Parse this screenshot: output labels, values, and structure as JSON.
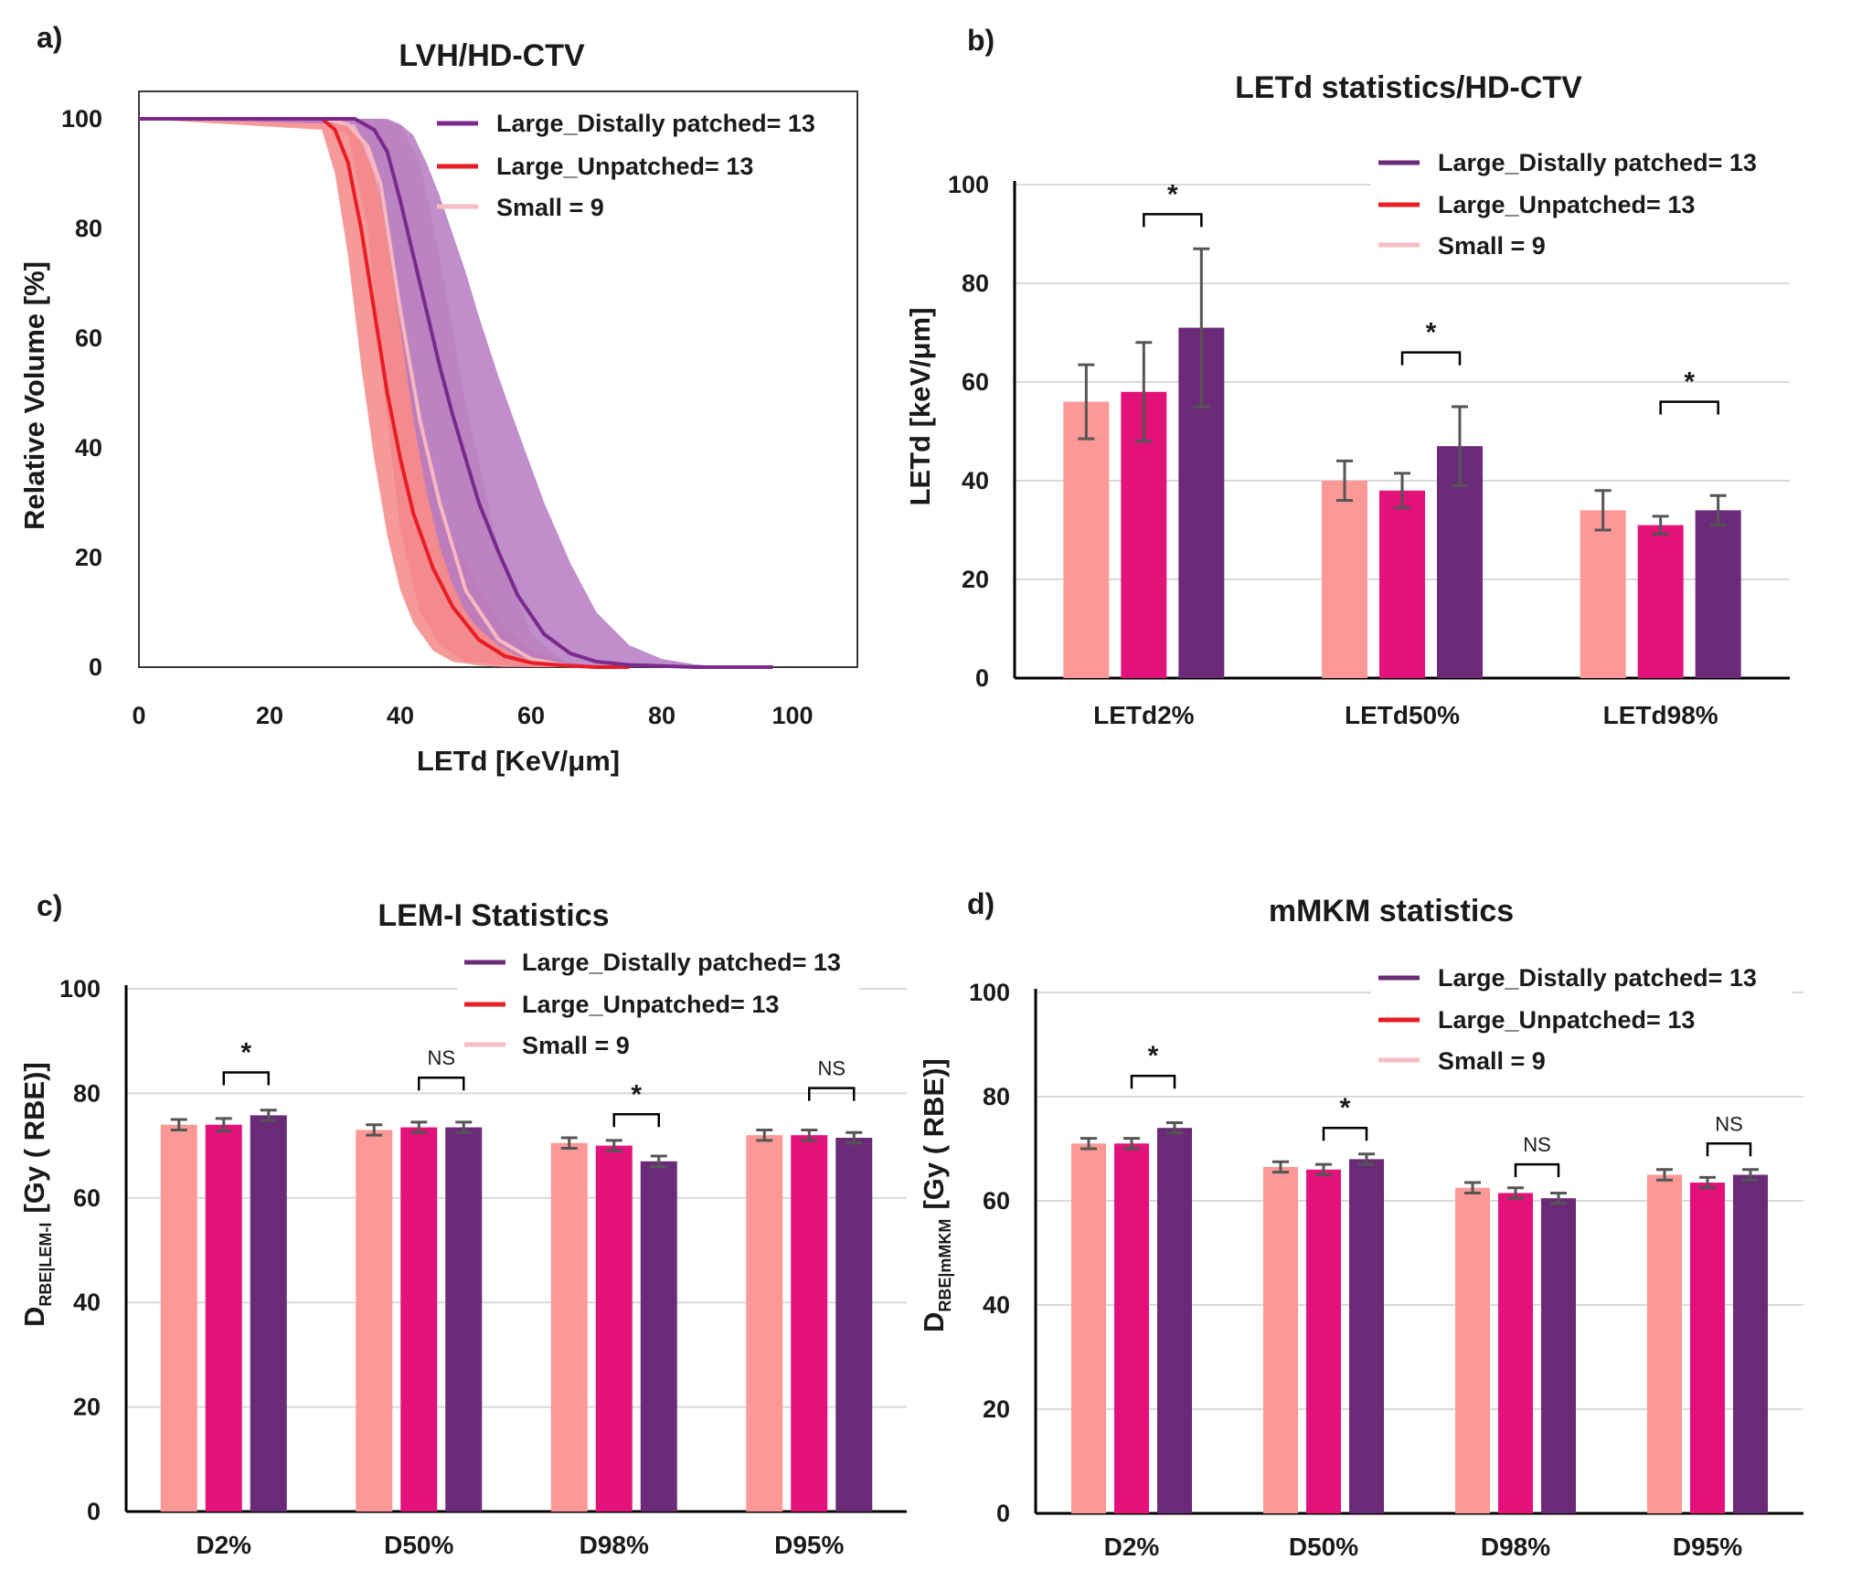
{
  "colors": {
    "small": "#fc9896",
    "unpatched": "#e2127a",
    "patched": "#6b2a78",
    "lvh_patched": "#7a2a8c",
    "lvh_patched_band": "#b47ac2",
    "lvh_unpatched": "#e81d25",
    "lvh_unpatched_band": "#f48080",
    "lvh_small": "#f7b8c0",
    "lvh_small_band": "#e8a4bf",
    "legend_small": "#f7bcc4",
    "grid": "#d9d9d9",
    "error": "#555555"
  },
  "chart_data": [
    {
      "id": "a",
      "panel_label": "a)",
      "type": "line",
      "title": "LVH/HD-CTV",
      "xlabel": "LETd [KeV/μm]",
      "ylabel": "Relative Volume [%]",
      "xlim": [
        0,
        110
      ],
      "ylim": [
        0,
        100
      ],
      "xticks": [
        "0",
        "20",
        "40",
        "60",
        "80",
        "100"
      ],
      "yticks": [
        "0",
        "20",
        "40",
        "60",
        "80",
        "100"
      ],
      "legend": [
        "Large_Distally patched= 13",
        "Large_Unpatched= 13",
        "Small = 9"
      ],
      "series": [
        {
          "name": "Small = 9",
          "color_key": "lvh_small",
          "band_key": "lvh_small_band",
          "band_opacity": 0.85,
          "x": [
            0,
            28,
            32,
            35,
            37,
            40,
            43,
            46,
            50,
            55,
            60,
            65,
            70
          ],
          "y": [
            100,
            100,
            99,
            95,
            88,
            65,
            45,
            30,
            14,
            5,
            1.5,
            0.3,
            0
          ],
          "upper": [
            100,
            100,
            100,
            100,
            100,
            99,
            92,
            75,
            48,
            22,
            6,
            1,
            0
          ],
          "lower": [
            100,
            100,
            97,
            80,
            55,
            25,
            10,
            4,
            1,
            0.5,
            0,
            0,
            0
          ]
        },
        {
          "name": "Large_Unpatched= 13",
          "color_key": "lvh_unpatched",
          "band_key": "lvh_unpatched_band",
          "band_opacity": 0.8,
          "x": [
            0,
            28,
            30,
            32,
            34,
            36,
            38,
            40,
            42,
            45,
            48,
            52,
            56,
            60,
            65,
            70,
            75
          ],
          "y": [
            100,
            100,
            98,
            92,
            80,
            65,
            50,
            38,
            28,
            18,
            11,
            5,
            2,
            0.8,
            0.3,
            0,
            0
          ],
          "upper": [
            100,
            100,
            100,
            99,
            96,
            90,
            80,
            65,
            50,
            34,
            24,
            14,
            7,
            3,
            1,
            0.3,
            0
          ],
          "lower": [
            100,
            98,
            90,
            75,
            55,
            38,
            24,
            14,
            8,
            3,
            1,
            0.3,
            0,
            0,
            0,
            0,
            0
          ]
        },
        {
          "name": "Large_Distally patched= 13",
          "color_key": "lvh_patched",
          "band_key": "lvh_patched_band",
          "band_opacity": 0.85,
          "x": [
            0,
            33,
            36,
            38,
            40,
            42,
            44,
            46,
            48,
            50,
            52,
            55,
            58,
            62,
            66,
            70,
            75,
            80,
            85,
            90,
            97
          ],
          "y": [
            100,
            100,
            98,
            94,
            85,
            75,
            65,
            55,
            46,
            38,
            30,
            21,
            13,
            6,
            2.5,
            1,
            0.4,
            0.2,
            0,
            0,
            0
          ],
          "upper": [
            100,
            100,
            100,
            100,
            99,
            97,
            92,
            86,
            79,
            72,
            64,
            53,
            43,
            30,
            19,
            10,
            4,
            1.5,
            0.5,
            0,
            0
          ],
          "lower": [
            100,
            99,
            92,
            78,
            62,
            45,
            32,
            22,
            15,
            10,
            7,
            4,
            2,
            0.7,
            0.2,
            0,
            0,
            0,
            0,
            0,
            0
          ]
        }
      ]
    },
    {
      "id": "b",
      "panel_label": "b)",
      "type": "bar",
      "title": "LETd statistics/HD-CTV",
      "ylabel": "LETd [keV/μm]",
      "ylim": [
        0,
        100
      ],
      "yticks": [
        "0",
        "20",
        "40",
        "60",
        "80",
        "100"
      ],
      "categories": [
        "LETd2%",
        "LETd50%",
        "LETd98%"
      ],
      "legend": [
        "Large_Distally patched= 13",
        "Large_Unpatched= 13",
        "Small = 9"
      ],
      "series": [
        {
          "name": "Small = 9",
          "color_key": "small",
          "values": [
            56,
            40,
            34
          ],
          "errors": [
            7.5,
            4,
            4
          ]
        },
        {
          "name": "Large_Unpatched= 13",
          "color_key": "unpatched",
          "values": [
            58,
            38,
            31
          ],
          "errors": [
            10,
            3.5,
            1.8
          ]
        },
        {
          "name": "Large_Distally patched= 13",
          "color_key": "patched",
          "values": [
            71,
            47,
            34
          ],
          "errors": [
            16,
            8,
            3
          ]
        }
      ],
      "significance": [
        {
          "category": 0,
          "label": "*",
          "bracket_y": 94
        },
        {
          "category": 1,
          "label": "*",
          "bracket_y": 66
        },
        {
          "category": 2,
          "label": "*",
          "bracket_y": 56
        }
      ]
    },
    {
      "id": "c",
      "panel_label": "c)",
      "type": "bar",
      "title": "LEM-I Statistics",
      "ylabel": "D",
      "ylabel_sub": "RBE|LEM-I",
      "ylabel_suffix": "[Gy ( RBE)]",
      "ylim": [
        0,
        100
      ],
      "yticks": [
        "0",
        "20",
        "40",
        "60",
        "80",
        "100"
      ],
      "categories": [
        "D2%",
        "D50%",
        "D98%",
        "D95%"
      ],
      "legend": [
        "Large_Distally patched= 13",
        "Large_Unpatched= 13",
        "Small = 9"
      ],
      "series": [
        {
          "name": "Small = 9",
          "color_key": "small",
          "values": [
            74,
            73,
            70.5,
            72
          ],
          "errors": [
            1,
            1,
            1,
            1
          ]
        },
        {
          "name": "Large_Unpatched= 13",
          "color_key": "unpatched",
          "values": [
            74,
            73.5,
            70,
            72
          ],
          "errors": [
            1.2,
            1,
            1,
            1
          ]
        },
        {
          "name": "Large_Distally patched= 13",
          "color_key": "patched",
          "values": [
            75.8,
            73.5,
            67,
            71.5
          ],
          "errors": [
            1,
            1,
            1,
            1
          ]
        }
      ],
      "significance": [
        {
          "category": 0,
          "label": "*",
          "bracket_y": 84
        },
        {
          "category": 1,
          "label": "NS",
          "bracket_y": 83
        },
        {
          "category": 2,
          "label": "*",
          "bracket_y": 76
        },
        {
          "category": 3,
          "label": "NS",
          "bracket_y": 81
        }
      ]
    },
    {
      "id": "d",
      "panel_label": "d)",
      "type": "bar",
      "title": "mMKM statistics",
      "ylabel": "D",
      "ylabel_sub": "RBE|mMKM",
      "ylabel_suffix": "[Gy ( RBE)]",
      "ylim": [
        0,
        100
      ],
      "yticks": [
        "0",
        "20",
        "40",
        "60",
        "80",
        "100"
      ],
      "categories": [
        "D2%",
        "D50%",
        "D98%",
        "D95%"
      ],
      "legend": [
        "Large_Distally patched= 13",
        "Large_Unpatched= 13",
        "Small = 9"
      ],
      "series": [
        {
          "name": "Small = 9",
          "color_key": "small",
          "values": [
            71,
            66.5,
            62.5,
            65
          ],
          "errors": [
            1,
            1,
            1,
            1
          ]
        },
        {
          "name": "Large_Unpatched= 13",
          "color_key": "unpatched",
          "values": [
            71,
            66,
            61.5,
            63.5
          ],
          "errors": [
            1,
            1,
            1,
            1
          ]
        },
        {
          "name": "Large_Distally patched= 13",
          "color_key": "patched",
          "values": [
            74,
            68,
            60.5,
            65
          ],
          "errors": [
            1,
            1,
            1,
            1
          ]
        }
      ],
      "significance": [
        {
          "category": 0,
          "label": "*",
          "bracket_y": 84
        },
        {
          "category": 1,
          "label": "*",
          "bracket_y": 74
        },
        {
          "category": 2,
          "label": "NS",
          "bracket_y": 67
        },
        {
          "category": 3,
          "label": "NS",
          "bracket_y": 71
        }
      ]
    }
  ]
}
